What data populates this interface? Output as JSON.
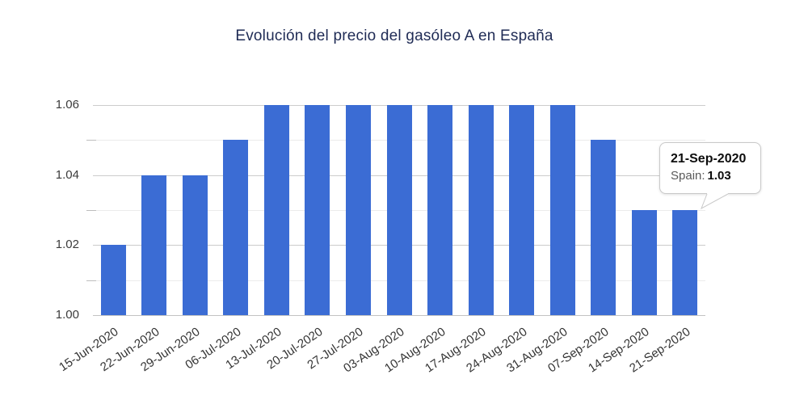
{
  "chart_data": {
    "type": "bar",
    "title": "Evolución del precio del gasóleo A en España",
    "title_color": "#1f2b55",
    "series_name": "Spain",
    "categories": [
      "15-Jun-2020",
      "22-Jun-2020",
      "29-Jun-2020",
      "06-Jul-2020",
      "13-Jul-2020",
      "20-Jul-2020",
      "27-Jul-2020",
      "03-Aug-2020",
      "10-Aug-2020",
      "17-Aug-2020",
      "24-Aug-2020",
      "31-Aug-2020",
      "07-Sep-2020",
      "14-Sep-2020",
      "21-Sep-2020"
    ],
    "values": [
      1.02,
      1.04,
      1.04,
      1.05,
      1.06,
      1.06,
      1.06,
      1.06,
      1.06,
      1.06,
      1.06,
      1.06,
      1.05,
      1.03,
      1.03
    ],
    "xlabel": "",
    "ylabel": "",
    "ylim": [
      1.0,
      1.06
    ],
    "y_major_ticks": [
      "1.00",
      "1.02",
      "1.04",
      "1.06"
    ],
    "y_minor_ticks": [
      1.01,
      1.03,
      1.05
    ],
    "grid": true,
    "legend": "none",
    "bar_color": "#3b6cd4"
  },
  "tooltip": {
    "date": "21-Sep-2020",
    "series_label": "Spain:",
    "value": "1.03"
  }
}
